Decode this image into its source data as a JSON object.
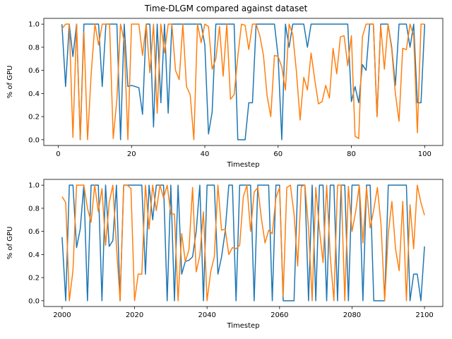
{
  "figure": {
    "title": "Time-DLGM compared against dataset"
  },
  "chart_data": [
    {
      "type": "line",
      "title": "Time-DLGM compared against dataset",
      "xlabel": "Timestep",
      "ylabel": "% of GPU",
      "xlim": [
        -3.95,
        104.95
      ],
      "ylim": [
        -0.05,
        1.05
      ],
      "xticks": [
        "0",
        "20",
        "40",
        "60",
        "80",
        "100"
      ],
      "yticks": [
        "0.0",
        "0.2",
        "0.4",
        "0.6",
        "0.8",
        "1.0"
      ],
      "grid": false,
      "colors": [
        "#1f77b4",
        "#ff7f0e"
      ],
      "x": [
        1,
        2,
        3,
        4,
        5,
        6,
        7,
        8,
        9,
        10,
        11,
        12,
        13,
        14,
        15,
        16,
        17,
        18,
        19,
        20,
        21,
        22,
        23,
        24,
        25,
        26,
        27,
        28,
        29,
        30,
        31,
        32,
        33,
        34,
        35,
        36,
        37,
        38,
        39,
        40,
        41,
        42,
        43,
        44,
        45,
        46,
        47,
        48,
        49,
        50,
        51,
        52,
        53,
        54,
        55,
        56,
        57,
        58,
        59,
        60,
        61,
        62,
        63,
        64,
        65,
        66,
        67,
        68,
        69,
        70,
        71,
        72,
        73,
        74,
        75,
        76,
        77,
        78,
        79,
        80,
        81,
        82,
        83,
        84,
        85,
        86,
        87,
        88,
        89,
        90,
        91,
        92,
        93,
        94,
        95,
        96,
        97,
        98,
        99,
        100
      ],
      "series": [
        {
          "values": [
            1.0,
            0.46,
            1.0,
            0.72,
            1.0,
            0.0,
            1.0,
            1.0,
            1.0,
            1.0,
            1.0,
            0.46,
            1.0,
            1.0,
            1.0,
            1.0,
            0.0,
            1.0,
            0.46,
            0.47,
            0.46,
            0.45,
            0.22,
            1.0,
            1.0,
            0.11,
            1.0,
            0.32,
            1.0,
            0.23,
            1.0,
            1.0,
            1.0,
            1.0,
            1.0,
            1.0,
            1.0,
            1.0,
            1.0,
            0.82,
            0.05,
            0.24,
            1.0,
            1.0,
            1.0,
            1.0,
            1.0,
            1.0,
            0.0,
            0.0,
            0.0,
            0.32,
            0.32,
            1.0,
            1.0,
            1.0,
            1.0,
            1.0,
            1.0,
            0.72,
            0.0,
            1.0,
            0.8,
            1.0,
            1.0,
            1.0,
            1.0,
            0.8,
            1.0,
            1.0,
            1.0,
            1.0,
            1.0,
            1.0,
            1.0,
            1.0,
            1.0,
            1.0,
            1.0,
            0.33,
            0.46,
            0.32,
            0.65,
            0.6,
            1.0,
            1.0,
            0.2,
            1.0,
            1.0,
            1.0,
            0.8,
            0.47,
            1.0,
            1.0,
            1.0,
            0.8,
            1.0,
            0.32,
            0.32,
            1.0
          ]
        },
        {
          "values": [
            0.96,
            1.0,
            1.0,
            0.02,
            1.0,
            0.0,
            0.93,
            0.0,
            0.58,
            1.0,
            0.82,
            1.0,
            1.0,
            1.0,
            0.01,
            0.35,
            1.0,
            0.85,
            0.0,
            1.0,
            1.0,
            1.0,
            0.73,
            1.0,
            0.58,
            1.0,
            0.23,
            1.0,
            0.75,
            1.0,
            1.0,
            0.6,
            0.52,
            1.0,
            0.46,
            0.39,
            0.0,
            1.0,
            0.84,
            1.0,
            0.98,
            0.61,
            0.7,
            0.98,
            0.55,
            1.0,
            0.35,
            0.39,
            0.72,
            1.0,
            0.99,
            0.78,
            1.0,
            1.0,
            0.9,
            0.73,
            0.38,
            0.2,
            0.73,
            0.72,
            0.63,
            0.43,
            1.0,
            0.91,
            0.59,
            0.17,
            0.54,
            0.43,
            0.75,
            0.52,
            0.31,
            0.33,
            0.47,
            0.36,
            0.79,
            0.57,
            0.89,
            0.9,
            0.64,
            0.9,
            0.03,
            0.01,
            0.89,
            1.0,
            1.0,
            1.0,
            0.2,
            0.99,
            0.61,
            1.0,
            0.78,
            0.4,
            0.16,
            0.79,
            0.78,
            1.0,
            0.9,
            0.06,
            1.0,
            1.0
          ]
        }
      ]
    },
    {
      "type": "line",
      "xlabel": "Timestep",
      "ylabel": "% of GPU",
      "xlim": [
        1994.95,
        2105.05
      ],
      "ylim": [
        -0.05,
        1.05
      ],
      "xticks": [
        "2000",
        "2020",
        "2040",
        "2060",
        "2080",
        "2100"
      ],
      "yticks": [
        "0.0",
        "0.2",
        "0.4",
        "0.6",
        "0.8",
        "1.0"
      ],
      "grid": false,
      "colors": [
        "#1f77b4",
        "#ff7f0e"
      ],
      "x": [
        2000,
        2001,
        2002,
        2003,
        2004,
        2005,
        2006,
        2007,
        2008,
        2009,
        2010,
        2011,
        2012,
        2013,
        2014,
        2015,
        2016,
        2017,
        2018,
        2019,
        2020,
        2021,
        2022,
        2023,
        2024,
        2025,
        2026,
        2027,
        2028,
        2029,
        2030,
        2031,
        2032,
        2033,
        2034,
        2035,
        2036,
        2037,
        2038,
        2039,
        2040,
        2041,
        2042,
        2043,
        2044,
        2045,
        2046,
        2047,
        2048,
        2049,
        2050,
        2051,
        2052,
        2053,
        2054,
        2055,
        2056,
        2057,
        2058,
        2059,
        2060,
        2061,
        2062,
        2063,
        2064,
        2065,
        2066,
        2067,
        2068,
        2069,
        2070,
        2071,
        2072,
        2073,
        2074,
        2075,
        2076,
        2077,
        2078,
        2079,
        2080,
        2081,
        2082,
        2083,
        2084,
        2085,
        2086,
        2087,
        2088,
        2089,
        2090,
        2091,
        2092,
        2093,
        2094,
        2095,
        2096,
        2097,
        2098,
        2099,
        2100
      ],
      "series": [
        {
          "values": [
            0.55,
            0.0,
            1.0,
            1.0,
            0.46,
            0.62,
            1.0,
            0.0,
            1.0,
            1.0,
            1.0,
            0.0,
            1.0,
            0.47,
            0.52,
            1.0,
            0.0,
            1.0,
            1.0,
            1.0,
            1.0,
            1.0,
            1.0,
            0.23,
            1.0,
            0.7,
            1.0,
            1.0,
            1.0,
            0.0,
            1.0,
            0.0,
            1.0,
            0.23,
            0.34,
            0.35,
            0.38,
            0.6,
            1.0,
            0.0,
            1.0,
            1.0,
            1.0,
            0.23,
            0.38,
            0.6,
            1.0,
            1.0,
            0.0,
            1.0,
            1.0,
            1.0,
            1.0,
            0.0,
            1.0,
            1.0,
            1.0,
            1.0,
            0.0,
            1.0,
            1.0,
            0.0,
            0.0,
            0.0,
            0.0,
            1.0,
            1.0,
            1.0,
            0.0,
            1.0,
            0.0,
            1.0,
            1.0,
            0.0,
            1.0,
            1.0,
            0.0,
            1.0,
            1.0,
            0.0,
            1.0,
            1.0,
            1.0,
            0.0,
            1.0,
            1.0,
            0.0,
            0.0,
            0.0,
            0.0,
            1.0,
            1.0,
            1.0,
            1.0,
            1.0,
            1.0,
            0.0,
            0.23,
            0.23,
            0.0,
            0.47
          ]
        },
        {
          "values": [
            0.9,
            0.85,
            0.0,
            0.26,
            1.0,
            1.0,
            1.0,
            0.8,
            0.68,
            1.0,
            0.77,
            0.97,
            0.48,
            0.85,
            1.0,
            0.47,
            0.0,
            1.0,
            1.0,
            0.97,
            0.0,
            0.23,
            0.23,
            1.0,
            0.62,
            1.0,
            0.78,
            1.0,
            0.89,
            1.0,
            0.75,
            0.75,
            0.0,
            0.58,
            0.34,
            0.44,
            0.98,
            0.25,
            0.39,
            0.77,
            0.0,
            0.25,
            0.38,
            1.0,
            0.61,
            0.62,
            0.4,
            0.46,
            0.45,
            0.48,
            0.9,
            1.0,
            0.6,
            0.94,
            0.98,
            0.71,
            0.5,
            0.61,
            0.58,
            0.89,
            0.98,
            0.04,
            0.98,
            1.0,
            0.75,
            0.3,
            0.99,
            1.0,
            0.63,
            0.0,
            0.98,
            0.62,
            0.33,
            1.0,
            0.38,
            0.0,
            1.0,
            1.0,
            0.0,
            0.99,
            0.6,
            0.77,
            1.0,
            0.5,
            0.98,
            0.63,
            0.79,
            0.98,
            0.66,
            0.0,
            0.58,
            0.86,
            0.45,
            0.26,
            0.86,
            0.0,
            0.83,
            0.45,
            1.0,
            0.85,
            0.74
          ]
        }
      ]
    }
  ]
}
